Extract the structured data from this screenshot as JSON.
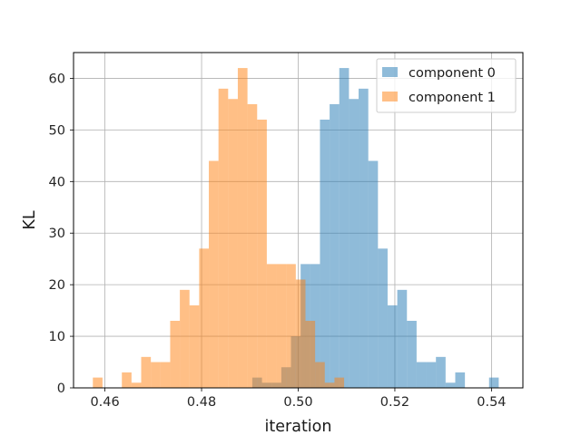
{
  "chart_data": {
    "type": "histogram",
    "title": "",
    "xlabel": "iteration",
    "ylabel": "KL",
    "xlim": [
      0.4535,
      0.5465
    ],
    "ylim": [
      0,
      65
    ],
    "xticks": [
      0.46,
      0.48,
      0.5,
      0.52,
      0.54
    ],
    "xtick_labels": [
      "0.46",
      "0.48",
      "0.50",
      "0.52",
      "0.54"
    ],
    "yticks": [
      0,
      10,
      20,
      30,
      40,
      50,
      60
    ],
    "ytick_labels": [
      "0",
      "10",
      "20",
      "30",
      "40",
      "50",
      "60"
    ],
    "grid": true,
    "legend_position": "top-right",
    "series": [
      {
        "name": "component 0",
        "color": "#1f77b4",
        "alpha": 0.5,
        "bins": [
          [
            0.4905,
            0.4925,
            2
          ],
          [
            0.4925,
            0.4945,
            1
          ],
          [
            0.4945,
            0.4965,
            1
          ],
          [
            0.4965,
            0.4985,
            4
          ],
          [
            0.4985,
            0.5005,
            10
          ],
          [
            0.5005,
            0.5025,
            24
          ],
          [
            0.5025,
            0.5045,
            24
          ],
          [
            0.5045,
            0.5065,
            52
          ],
          [
            0.5065,
            0.5085,
            55
          ],
          [
            0.5085,
            0.5105,
            62
          ],
          [
            0.5105,
            0.5125,
            56
          ],
          [
            0.5125,
            0.5145,
            58
          ],
          [
            0.5145,
            0.5165,
            44
          ],
          [
            0.5165,
            0.5185,
            27
          ],
          [
            0.5185,
            0.5205,
            16
          ],
          [
            0.5205,
            0.5225,
            19
          ],
          [
            0.5225,
            0.5245,
            13
          ],
          [
            0.5245,
            0.5265,
            5
          ],
          [
            0.5265,
            0.5285,
            5
          ],
          [
            0.5285,
            0.5305,
            6
          ],
          [
            0.5305,
            0.5325,
            1
          ],
          [
            0.5325,
            0.5345,
            3
          ],
          [
            0.5395,
            0.5415,
            2
          ]
        ]
      },
      {
        "name": "component 1",
        "color": "#ff7f0e",
        "alpha": 0.5,
        "bins": [
          [
            0.4575,
            0.4595,
            2
          ],
          [
            0.4635,
            0.4655,
            3
          ],
          [
            0.4655,
            0.4675,
            1
          ],
          [
            0.4675,
            0.4695,
            6
          ],
          [
            0.4695,
            0.4715,
            5
          ],
          [
            0.4715,
            0.4735,
            5
          ],
          [
            0.4735,
            0.4755,
            13
          ],
          [
            0.4755,
            0.4775,
            19
          ],
          [
            0.4775,
            0.4795,
            16
          ],
          [
            0.4795,
            0.4815,
            27
          ],
          [
            0.4815,
            0.4835,
            44
          ],
          [
            0.4835,
            0.4855,
            58
          ],
          [
            0.4855,
            0.4875,
            56
          ],
          [
            0.4875,
            0.4895,
            62
          ],
          [
            0.4895,
            0.4915,
            55
          ],
          [
            0.4915,
            0.4935,
            52
          ],
          [
            0.4935,
            0.4955,
            24
          ],
          [
            0.4955,
            0.4975,
            24
          ],
          [
            0.4975,
            0.4995,
            24
          ],
          [
            0.4995,
            0.5015,
            21
          ],
          [
            0.5015,
            0.5035,
            13
          ],
          [
            0.5035,
            0.5055,
            5
          ],
          [
            0.5055,
            0.5075,
            1
          ],
          [
            0.5075,
            0.5095,
            2
          ]
        ]
      }
    ]
  }
}
